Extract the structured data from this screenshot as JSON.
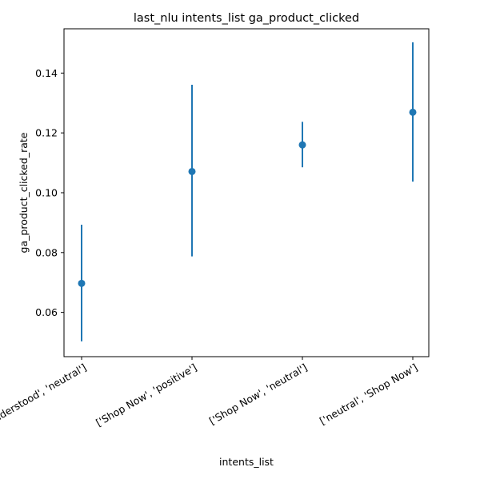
{
  "chart_data": {
    "type": "scatter",
    "title": "last_nlu intents_list ga_product_clicked",
    "xlabel": "intents_list",
    "ylabel": "ga_product_clicked_rate",
    "categories": [
      "['Not Understood', 'neutral']",
      "['Shop Now', 'positive']",
      "['Shop Now', 'neutral']",
      "['neutral', 'Shop Now']"
    ],
    "series": [
      {
        "values": [
          0.0697,
          0.1071,
          0.116,
          0.1269
        ],
        "error_low": [
          0.0503,
          0.0787,
          0.1085,
          0.1037
        ],
        "error_high": [
          0.0893,
          0.1361,
          0.1237,
          0.1503
        ]
      }
    ],
    "ylim": [
      0.0452,
      0.1548
    ],
    "yticks": [
      0.06,
      0.08,
      0.1,
      0.12,
      0.14
    ],
    "ytick_labels": [
      "0.06",
      "0.08",
      "0.10",
      "0.12",
      "0.14"
    ],
    "grid": false,
    "colors": {
      "marker": "#1f77b4",
      "axis": "#000000"
    }
  }
}
